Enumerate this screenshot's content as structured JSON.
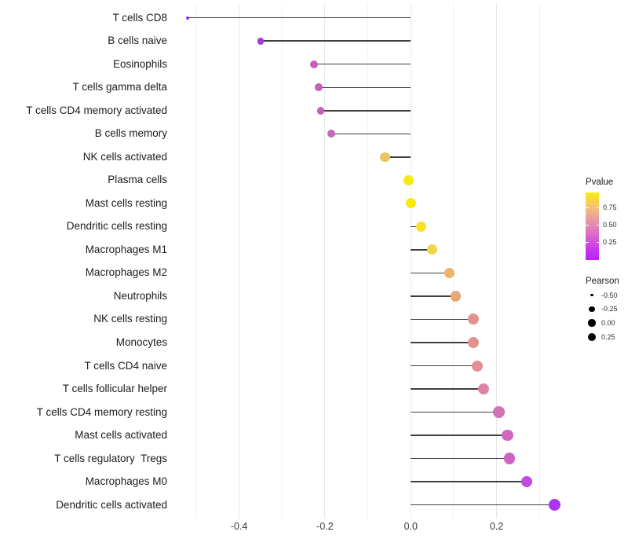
{
  "chart_data": {
    "type": "lollipop",
    "orientation": "horizontal",
    "title": "",
    "xlabel": "",
    "ylabel": "",
    "xlim": [
      -0.565,
      0.385
    ],
    "grid": "vertical-only",
    "x_tick_labels": [
      "-0.4",
      "-0.2",
      "0.0",
      "0.2"
    ],
    "x_tick_values": [
      -0.4,
      -0.2,
      0.0,
      0.2
    ],
    "x_gridline_values": [
      -0.5,
      -0.4,
      -0.3,
      -0.2,
      -0.1,
      0.0,
      0.1,
      0.2,
      0.3
    ],
    "points": [
      {
        "label": "T cells CD8",
        "pearson": -0.52,
        "color": "#8F2CE3",
        "radius": 2.0
      },
      {
        "label": "B cells naive",
        "pearson": -0.35,
        "color": "#A338DD",
        "radius": 4.4
      },
      {
        "label": "Eosinophils",
        "pearson": -0.225,
        "color": "#C55FBB",
        "radius": 5.0
      },
      {
        "label": "T cells gamma delta",
        "pearson": -0.215,
        "color": "#C560B9",
        "radius": 4.8
      },
      {
        "label": "T cells CD4 memory activated",
        "pearson": -0.21,
        "color": "#C562B7",
        "radius": 4.8
      },
      {
        "label": "B cells memory",
        "pearson": -0.185,
        "color": "#C968B2",
        "radius": 5.0
      },
      {
        "label": "NK cells activated",
        "pearson": -0.06,
        "color": "#ECC35F",
        "radius": 6.3
      },
      {
        "label": "Plasma cells",
        "pearson": -0.005,
        "color": "#F7EA0D",
        "radius": 6.6
      },
      {
        "label": "Mast cells resting",
        "pearson": 0.0,
        "color": "#F7EA0D",
        "radius": 6.6
      },
      {
        "label": "Dendritic cells resting",
        "pearson": 0.025,
        "color": "#F5E228",
        "radius": 6.5
      },
      {
        "label": "Macrophages M1",
        "pearson": 0.05,
        "color": "#F0D74A",
        "radius": 6.5
      },
      {
        "label": "Macrophages M2",
        "pearson": 0.09,
        "color": "#ECB369",
        "radius": 6.7
      },
      {
        "label": "Neutrophils",
        "pearson": 0.105,
        "color": "#E9A876",
        "radius": 6.8
      },
      {
        "label": "NK cells resting",
        "pearson": 0.145,
        "color": "#E2948F",
        "radius": 7.0
      },
      {
        "label": "Monocytes",
        "pearson": 0.145,
        "color": "#E2928F",
        "radius": 7.0
      },
      {
        "label": "T cells CD4 naive",
        "pearson": 0.155,
        "color": "#E18F93",
        "radius": 7.0
      },
      {
        "label": "T cells follicular helper",
        "pearson": 0.17,
        "color": "#DC82A5",
        "radius": 7.1
      },
      {
        "label": "T cells CD4 memory resting",
        "pearson": 0.205,
        "color": "#D274B5",
        "radius": 7.2
      },
      {
        "label": "Mast cells activated",
        "pearson": 0.225,
        "color": "#CF67C0",
        "radius": 7.3
      },
      {
        "label": "T cells regulatory  Tregs",
        "pearson": 0.23,
        "color": "#CE65C3",
        "radius": 7.3
      },
      {
        "label": "Macrophages M0",
        "pearson": 0.27,
        "color": "#C14BDE",
        "radius": 7.4
      },
      {
        "label": "Dendritic cells activated",
        "pearson": 0.335,
        "color": "#AB34EF",
        "radius": 7.7
      }
    ],
    "legend_pvalue": {
      "title": "Pvalue",
      "tick_labels": [
        "0.75",
        "0.50",
        "0.25"
      ],
      "gradient_stops": [
        "#FAEB0F",
        "#F3C46F",
        "#E79BA2",
        "#DB70C5",
        "#CA41E8",
        "#BB1FFA"
      ]
    },
    "legend_pearson": {
      "title": "Pearson",
      "entries": [
        {
          "label": "-0.50",
          "radius": 1.7
        },
        {
          "label": "-0.25",
          "radius": 3.7
        },
        {
          "label": "0.00",
          "radius": 4.7
        },
        {
          "label": "0.25",
          "radius": 5.2
        }
      ]
    }
  },
  "colors": {
    "background": "#ffffff",
    "stem": "#404040",
    "gridline_major": "#e7e7e7",
    "gridline_minor": "#f0f0f0",
    "axis_text": "#383838",
    "label_text": "#1c1c1c"
  }
}
